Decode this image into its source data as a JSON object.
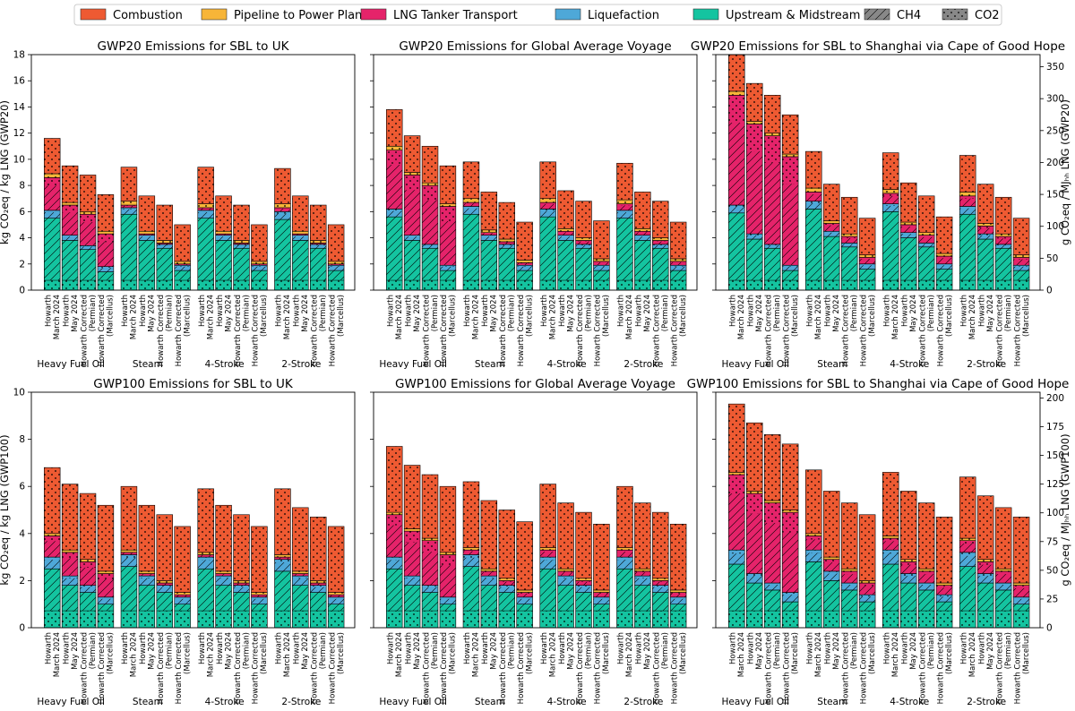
{
  "colors": {
    "Combustion": "#ee5a32",
    "Pipeline to Power Plant": "#f7b538",
    "LNG Tanker Transport": "#e5236a",
    "Liquefaction": "#4ea8d8",
    "Upstream & Midstream": "#14c4a0"
  },
  "legend": {
    "stages": [
      "Combustion",
      "Pipeline to Power Plant",
      "LNG Tanker Transport",
      "Liquefaction",
      "Upstream & Midstream"
    ],
    "gases": [
      "CH4",
      "CO2"
    ]
  },
  "chart_data": [
    {
      "type": "bar",
      "stacked": true,
      "title": "GWP20 Emissions for SBL to UK",
      "ylabel": "kg CO₂eq / kg LNG (GWP20)",
      "ylim": [
        0,
        18
      ],
      "yticks": [
        0,
        2,
        4,
        6,
        8,
        10,
        12,
        14,
        16,
        18
      ],
      "groups": [
        "Heavy Fuel Oil",
        "Steam",
        "4-Stroke",
        "2-Stroke"
      ],
      "bar_labels": [
        [
          "Howarth",
          "March 2024"
        ],
        [
          "Howarth",
          "May 2024"
        ],
        [
          "Howarth Corrected",
          "(Permian)"
        ],
        [
          "Howarth Corrected",
          "(Marcellus)"
        ]
      ],
      "stack_order": [
        "Upstream & Midstream",
        "Liquefaction",
        "LNG Tanker Transport",
        "Pipeline to Power Plant",
        "Combustion"
      ],
      "values": [
        [
          [
            5.5,
            0.6,
            2.5,
            0.3,
            2.7
          ],
          [
            3.8,
            0.4,
            2.3,
            0.2,
            2.8
          ],
          [
            3.1,
            0.3,
            2.4,
            0.2,
            2.8
          ],
          [
            1.4,
            0.4,
            2.5,
            0.2,
            2.8
          ]
        ],
        [
          [
            5.8,
            0.5,
            0.2,
            0.3,
            2.6
          ],
          [
            3.8,
            0.4,
            0.1,
            0.2,
            2.7
          ],
          [
            3.2,
            0.3,
            0.1,
            0.2,
            2.7
          ],
          [
            1.5,
            0.4,
            0.1,
            0.2,
            2.8
          ]
        ],
        [
          [
            5.5,
            0.6,
            0.2,
            0.3,
            2.8
          ],
          [
            3.8,
            0.4,
            0.1,
            0.2,
            2.7
          ],
          [
            3.2,
            0.3,
            0.1,
            0.2,
            2.7
          ],
          [
            1.5,
            0.4,
            0.1,
            0.2,
            2.8
          ]
        ],
        [
          [
            5.4,
            0.6,
            0.3,
            0.3,
            2.7
          ],
          [
            3.8,
            0.4,
            0.1,
            0.2,
            2.7
          ],
          [
            3.2,
            0.3,
            0.1,
            0.2,
            2.7
          ],
          [
            1.5,
            0.4,
            0.1,
            0.2,
            2.8
          ]
        ]
      ],
      "secondary_axis": null
    },
    {
      "type": "bar",
      "stacked": true,
      "title": "GWP20 Emissions for Global Average Voyage",
      "ylabel": "",
      "ylim": [
        0,
        18
      ],
      "yticks": [
        0,
        2,
        4,
        6,
        8,
        10,
        12,
        14,
        16,
        18
      ],
      "groups": [
        "Heavy Fuel Oil",
        "Steam",
        "4-Stroke",
        "2-Stroke"
      ],
      "bar_labels": [
        [
          "Howarth",
          "March 2024"
        ],
        [
          "Howarth",
          "May 2024"
        ],
        [
          "Howarth Corrected",
          "(Permian)"
        ],
        [
          "Howarth Corrected",
          "(Marcellus)"
        ]
      ],
      "stack_order": [
        "Upstream & Midstream",
        "Liquefaction",
        "LNG Tanker Transport",
        "Pipeline to Power Plant",
        "Combustion"
      ],
      "values": [
        [
          [
            5.6,
            0.6,
            4.5,
            0.3,
            2.8
          ],
          [
            3.8,
            0.4,
            4.6,
            0.2,
            2.8
          ],
          [
            3.2,
            0.3,
            4.5,
            0.2,
            2.8
          ],
          [
            1.5,
            0.4,
            4.5,
            0.2,
            2.9
          ]
        ],
        [
          [
            5.8,
            0.6,
            0.3,
            0.3,
            2.8
          ],
          [
            3.8,
            0.4,
            0.2,
            0.2,
            2.9
          ],
          [
            3.2,
            0.3,
            0.2,
            0.2,
            2.8
          ],
          [
            1.5,
            0.4,
            0.2,
            0.2,
            2.9
          ]
        ],
        [
          [
            5.6,
            0.6,
            0.5,
            0.3,
            2.8
          ],
          [
            3.8,
            0.4,
            0.3,
            0.2,
            2.9
          ],
          [
            3.2,
            0.3,
            0.3,
            0.2,
            2.8
          ],
          [
            1.5,
            0.4,
            0.3,
            0.2,
            2.9
          ]
        ],
        [
          [
            5.5,
            0.6,
            0.5,
            0.3,
            2.8
          ],
          [
            3.8,
            0.4,
            0.3,
            0.2,
            2.8
          ],
          [
            3.2,
            0.3,
            0.3,
            0.2,
            2.8
          ],
          [
            1.5,
            0.4,
            0.3,
            0.2,
            2.8
          ]
        ]
      ],
      "secondary_axis": null
    },
    {
      "type": "bar",
      "stacked": true,
      "title": "GWP20 Emissions for SBL to Shanghai via Cape of Good Hope",
      "ylabel": "",
      "ylim": [
        0,
        18
      ],
      "yticks": [
        0,
        2,
        4,
        6,
        8,
        10,
        12,
        14,
        16,
        18
      ],
      "groups": [
        "Heavy Fuel Oil",
        "Steam",
        "4-Stroke",
        "2-Stroke"
      ],
      "bar_labels": [
        [
          "Howarth",
          "March 2024"
        ],
        [
          "Howarth",
          "May 2024"
        ],
        [
          "Howarth Corrected",
          "(Permian)"
        ],
        [
          "Howarth Corrected",
          "(Marcellus)"
        ]
      ],
      "stack_order": [
        "Upstream & Midstream",
        "Liquefaction",
        "LNG Tanker Transport",
        "Pipeline to Power Plant",
        "Combustion"
      ],
      "values": [
        [
          [
            5.9,
            0.6,
            8.4,
            0.3,
            2.8
          ],
          [
            3.9,
            0.4,
            8.4,
            0.2,
            2.9
          ],
          [
            3.2,
            0.3,
            8.3,
            0.2,
            2.9
          ],
          [
            1.5,
            0.4,
            8.3,
            0.2,
            3.0
          ]
        ],
        [
          [
            6.2,
            0.6,
            0.7,
            0.3,
            2.8
          ],
          [
            4.1,
            0.4,
            0.6,
            0.2,
            2.8
          ],
          [
            3.3,
            0.3,
            0.5,
            0.2,
            2.8
          ],
          [
            1.6,
            0.4,
            0.5,
            0.2,
            2.8
          ]
        ],
        [
          [
            6.0,
            0.6,
            0.8,
            0.3,
            2.8
          ],
          [
            4.0,
            0.4,
            0.6,
            0.2,
            3.0
          ],
          [
            3.3,
            0.3,
            0.6,
            0.2,
            2.8
          ],
          [
            1.6,
            0.4,
            0.6,
            0.2,
            2.8
          ]
        ],
        [
          [
            5.8,
            0.6,
            0.8,
            0.3,
            2.8
          ],
          [
            3.9,
            0.4,
            0.6,
            0.2,
            3.0
          ],
          [
            3.2,
            0.3,
            0.6,
            0.2,
            2.8
          ],
          [
            1.5,
            0.4,
            0.6,
            0.2,
            2.8
          ]
        ]
      ],
      "secondary_axis": {
        "label": "g CO₂eq / MJₕₕ LNG (GWP20)",
        "ylim": [
          0,
          369
        ],
        "yticks": [
          0,
          50,
          100,
          150,
          200,
          250,
          300,
          350
        ]
      }
    },
    {
      "type": "bar",
      "stacked": true,
      "title": "GWP100 Emissions for SBL to UK",
      "ylabel": "kg CO₂eq / kg LNG (GWP100)",
      "ylim": [
        0,
        10
      ],
      "yticks": [
        0,
        2,
        4,
        6,
        8,
        10
      ],
      "groups": [
        "Heavy Fuel Oil",
        "Steam",
        "4-Stroke",
        "2-Stroke"
      ],
      "bar_labels": [
        [
          "Howarth",
          "March 2024"
        ],
        [
          "Howarth",
          "May 2024"
        ],
        [
          "Howarth Corrected",
          "(Permian)"
        ],
        [
          "Howarth Corrected",
          "(Marcellus)"
        ]
      ],
      "stack_order": [
        "Upstream & Midstream",
        "Liquefaction",
        "LNG Tanker Transport",
        "Pipeline to Power Plant",
        "Combustion"
      ],
      "values": [
        [
          [
            2.5,
            0.5,
            0.9,
            0.1,
            2.8
          ],
          [
            1.8,
            0.4,
            1.0,
            0.1,
            2.8
          ],
          [
            1.5,
            0.3,
            1.0,
            0.1,
            2.8
          ],
          [
            1.0,
            0.3,
            1.0,
            0.1,
            2.8
          ]
        ],
        [
          [
            2.6,
            0.5,
            0.1,
            0.1,
            2.7
          ],
          [
            1.8,
            0.4,
            0.1,
            0.1,
            2.8
          ],
          [
            1.5,
            0.3,
            0.1,
            0.1,
            2.8
          ],
          [
            1.0,
            0.3,
            0.1,
            0.1,
            2.8
          ]
        ],
        [
          [
            2.5,
            0.5,
            0.1,
            0.1,
            2.7
          ],
          [
            1.8,
            0.4,
            0.1,
            0.1,
            2.8
          ],
          [
            1.5,
            0.3,
            0.1,
            0.1,
            2.8
          ],
          [
            1.0,
            0.3,
            0.1,
            0.1,
            2.8
          ]
        ],
        [
          [
            2.4,
            0.5,
            0.1,
            0.1,
            2.8
          ],
          [
            1.8,
            0.4,
            0.1,
            0.1,
            2.7
          ],
          [
            1.5,
            0.3,
            0.1,
            0.1,
            2.7
          ],
          [
            1.0,
            0.3,
            0.1,
            0.1,
            2.8
          ]
        ]
      ],
      "secondary_axis": null
    },
    {
      "type": "bar",
      "stacked": true,
      "title": "GWP100 Emissions for Global Average Voyage",
      "ylabel": "",
      "ylim": [
        0,
        10
      ],
      "yticks": [
        0,
        2,
        4,
        6,
        8,
        10
      ],
      "groups": [
        "Heavy Fuel Oil",
        "Steam",
        "4-Stroke",
        "2-Stroke"
      ],
      "bar_labels": [
        [
          "Howarth",
          "March 2024"
        ],
        [
          "Howarth",
          "May 2024"
        ],
        [
          "Howarth Corrected",
          "(Permian)"
        ],
        [
          "Howarth Corrected",
          "(Marcellus)"
        ]
      ],
      "stack_order": [
        "Upstream & Midstream",
        "Liquefaction",
        "LNG Tanker Transport",
        "Pipeline to Power Plant",
        "Combustion"
      ],
      "values": [
        [
          [
            2.5,
            0.5,
            1.8,
            0.1,
            2.8
          ],
          [
            1.8,
            0.4,
            1.9,
            0.1,
            2.7
          ],
          [
            1.5,
            0.3,
            1.9,
            0.1,
            2.7
          ],
          [
            1.0,
            0.3,
            1.8,
            0.1,
            2.8
          ]
        ],
        [
          [
            2.6,
            0.5,
            0.2,
            0.1,
            2.8
          ],
          [
            1.8,
            0.4,
            0.2,
            0.1,
            2.9
          ],
          [
            1.5,
            0.3,
            0.2,
            0.1,
            2.9
          ],
          [
            1.0,
            0.3,
            0.2,
            0.1,
            2.9
          ]
        ],
        [
          [
            2.5,
            0.5,
            0.3,
            0.1,
            2.7
          ],
          [
            1.8,
            0.4,
            0.2,
            0.1,
            2.8
          ],
          [
            1.5,
            0.3,
            0.2,
            0.1,
            2.8
          ],
          [
            1.0,
            0.3,
            0.2,
            0.1,
            2.8
          ]
        ],
        [
          [
            2.5,
            0.5,
            0.3,
            0.1,
            2.6
          ],
          [
            1.8,
            0.4,
            0.2,
            0.1,
            2.8
          ],
          [
            1.5,
            0.3,
            0.2,
            0.1,
            2.8
          ],
          [
            1.0,
            0.3,
            0.2,
            0.1,
            2.8
          ]
        ]
      ],
      "secondary_axis": null
    },
    {
      "type": "bar",
      "stacked": true,
      "title": "GWP100 Emissions for SBL to Shanghai via Cape of Good Hope",
      "ylabel": "",
      "ylim": [
        0,
        10
      ],
      "yticks": [
        0,
        2,
        4,
        6,
        8,
        10
      ],
      "groups": [
        "Heavy Fuel Oil",
        "Steam",
        "4-Stroke",
        "2-Stroke"
      ],
      "bar_labels": [
        [
          "Howarth",
          "March 2024"
        ],
        [
          "Howarth",
          "May 2024"
        ],
        [
          "Howarth Corrected",
          "(Permian)"
        ],
        [
          "Howarth Corrected",
          "(Marcellus)"
        ]
      ],
      "stack_order": [
        "Upstream & Midstream",
        "Liquefaction",
        "LNG Tanker Transport",
        "Pipeline to Power Plant",
        "Combustion"
      ],
      "values": [
        [
          [
            2.7,
            0.6,
            3.2,
            0.1,
            2.9
          ],
          [
            1.9,
            0.4,
            3.4,
            0.1,
            2.9
          ],
          [
            1.6,
            0.3,
            3.4,
            0.1,
            2.8
          ],
          [
            1.1,
            0.4,
            3.4,
            0.1,
            2.8
          ]
        ],
        [
          [
            2.8,
            0.5,
            0.6,
            0.1,
            2.7
          ],
          [
            2.0,
            0.4,
            0.5,
            0.1,
            2.8
          ],
          [
            1.6,
            0.3,
            0.5,
            0.1,
            2.8
          ],
          [
            1.1,
            0.3,
            0.5,
            0.1,
            2.8
          ]
        ],
        [
          [
            2.7,
            0.6,
            0.5,
            0.1,
            2.7
          ],
          [
            1.9,
            0.4,
            0.5,
            0.1,
            2.9
          ],
          [
            1.6,
            0.3,
            0.5,
            0.1,
            2.8
          ],
          [
            1.1,
            0.3,
            0.4,
            0.1,
            2.8
          ]
        ],
        [
          [
            2.6,
            0.6,
            0.5,
            0.1,
            2.6
          ],
          [
            1.9,
            0.4,
            0.5,
            0.1,
            2.7
          ],
          [
            1.6,
            0.3,
            0.5,
            0.1,
            2.6
          ],
          [
            1.0,
            0.3,
            0.5,
            0.1,
            2.8
          ]
        ]
      ],
      "secondary_axis": {
        "label": "g CO₂eq / MJₕₕ LNG (GWP100)",
        "ylim": [
          0,
          205
        ],
        "yticks": [
          0,
          25,
          50,
          75,
          100,
          125,
          150,
          175,
          200
        ]
      }
    }
  ]
}
